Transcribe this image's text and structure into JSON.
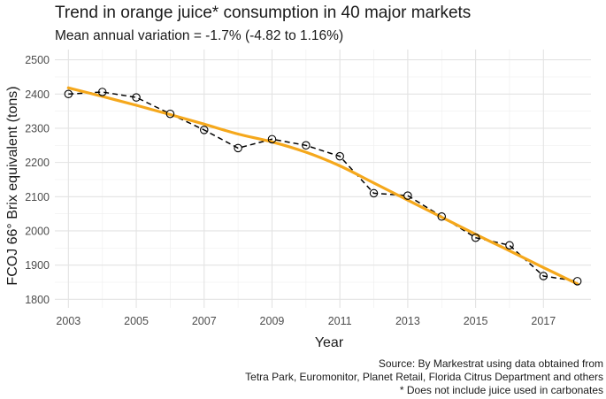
{
  "chart_data": {
    "type": "line",
    "title": "Trend in orange juice* consumption in 40 major markets",
    "subtitle": "Mean annual variation = -1.7% (-4.82 to 1.16%)",
    "xlabel": "Year",
    "ylabel": "FCOJ 66° Brix equivalent (tons)",
    "x_ticks": [
      "2003",
      "2005",
      "2007",
      "2009",
      "2011",
      "2013",
      "2015",
      "2017"
    ],
    "y_ticks": [
      "1800",
      "1900",
      "2000",
      "2100",
      "2200",
      "2300",
      "2400",
      "2500"
    ],
    "xlim": [
      2002.6,
      2018.4
    ],
    "ylim": [
      1775,
      2530
    ],
    "grid": true,
    "series": [
      {
        "style": "dashed line with open circle markers",
        "color": "#000000",
        "x": [
          2003,
          2004,
          2005,
          2006,
          2007,
          2008,
          2009,
          2010,
          2011,
          2012,
          2013,
          2014,
          2015,
          2016,
          2017,
          2018
        ],
        "values": [
          2400,
          2406,
          2390,
          2342,
          2295,
          2242,
          2268,
          2250,
          2218,
          2110,
          2103,
          2042,
          1980,
          1958,
          1868,
          1853
        ]
      },
      {
        "style": "smoothed trend line",
        "color": "#f5a81c",
        "x": [
          2003,
          2004,
          2005,
          2006,
          2007,
          2008,
          2009,
          2010,
          2011,
          2012,
          2013,
          2014,
          2015,
          2016,
          2017,
          2018
        ],
        "values": [
          2418,
          2393,
          2367,
          2340,
          2312,
          2283,
          2260,
          2230,
          2190,
          2140,
          2090,
          2040,
          1990,
          1942,
          1893,
          1845
        ]
      }
    ],
    "caption": [
      "Source: By Markestrat using data obtained from",
      "Tetra Park, Euromonitor, Planet Retail, Florida Citrus Department and others",
      "* Does not include juice used in carbonates"
    ]
  }
}
